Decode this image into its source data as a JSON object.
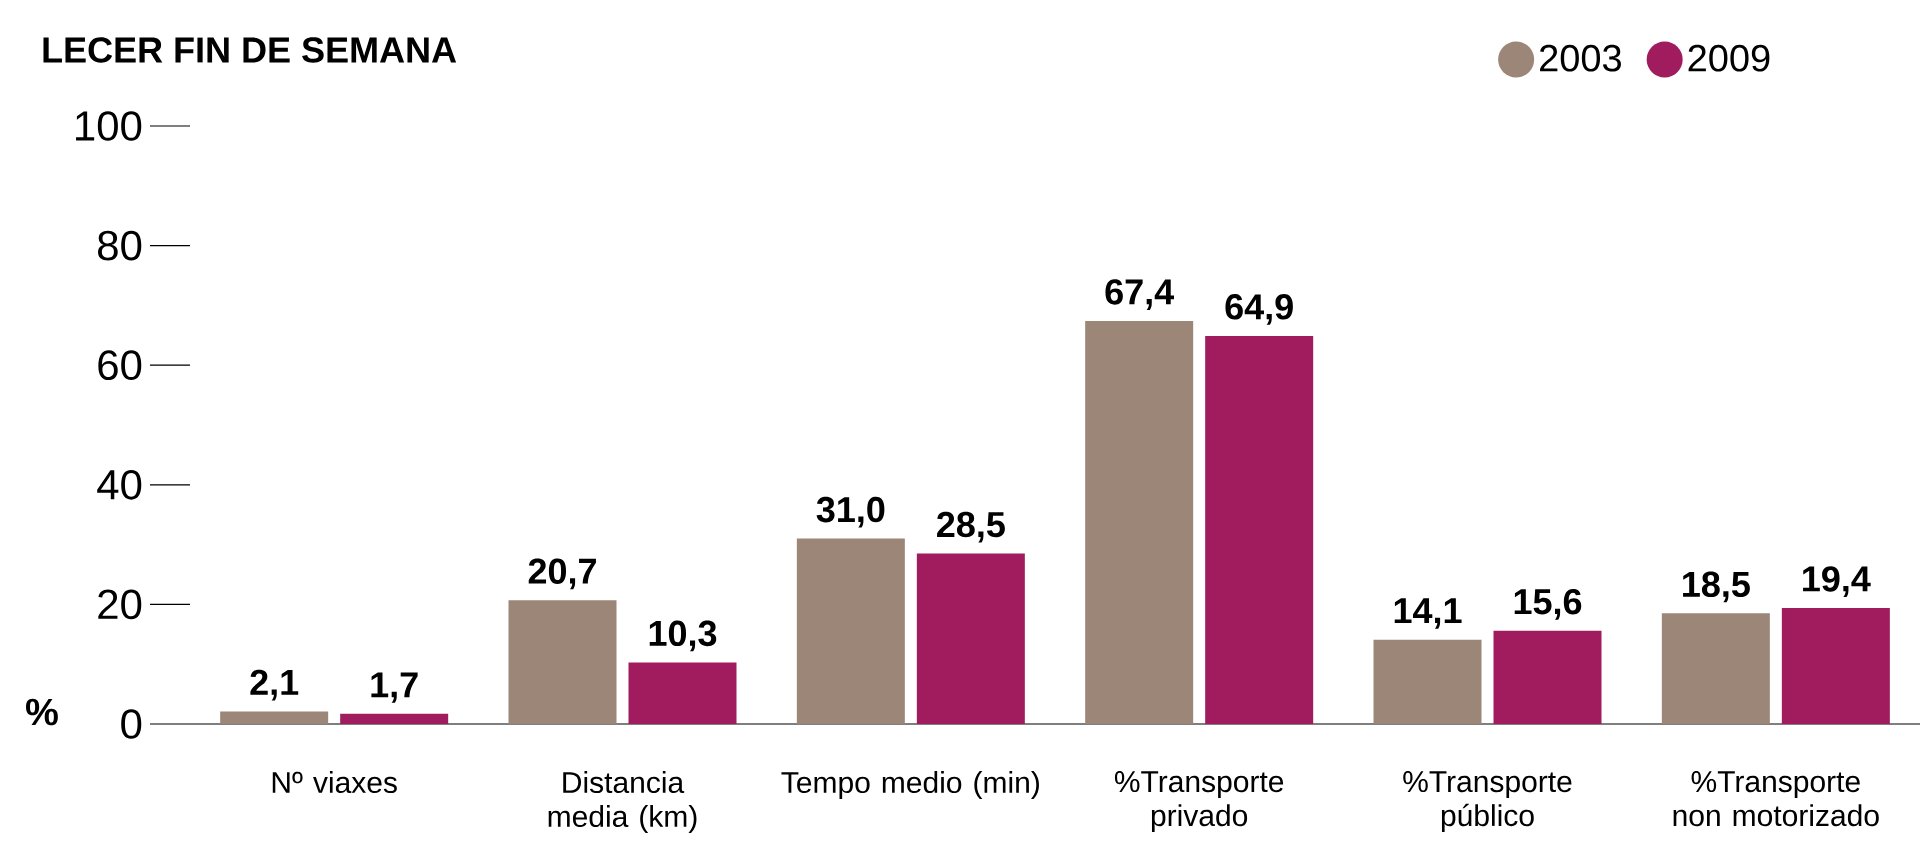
{
  "chart_data": {
    "type": "bar",
    "title": "LECER FIN DE SEMANA",
    "ylabel": "%",
    "categories": [
      "Nº viaxes",
      "Distancia media (km)",
      "Tempo medio (min)",
      "%Transporte privado",
      "%Transporte público",
      "%Transporte non motorizado"
    ],
    "series": [
      {
        "name": "2003",
        "color": "#9c8677",
        "values": [
          2.1,
          20.7,
          31.0,
          67.4,
          14.1,
          18.5
        ],
        "value_labels": [
          "2,1",
          "20,7",
          "31,0",
          "67,4",
          "14,1",
          "18,5"
        ]
      },
      {
        "name": "2009",
        "color": "#a01c5f",
        "values": [
          1.7,
          10.3,
          28.5,
          64.9,
          15.6,
          19.4
        ],
        "value_labels": [
          "1,7",
          "10,3",
          "28,5",
          "64,9",
          "15,6",
          "19,4"
        ]
      }
    ],
    "ylim": [
      0,
      100
    ],
    "yticks": [
      0,
      20,
      40,
      60,
      80,
      100
    ],
    "legend": "top right"
  }
}
